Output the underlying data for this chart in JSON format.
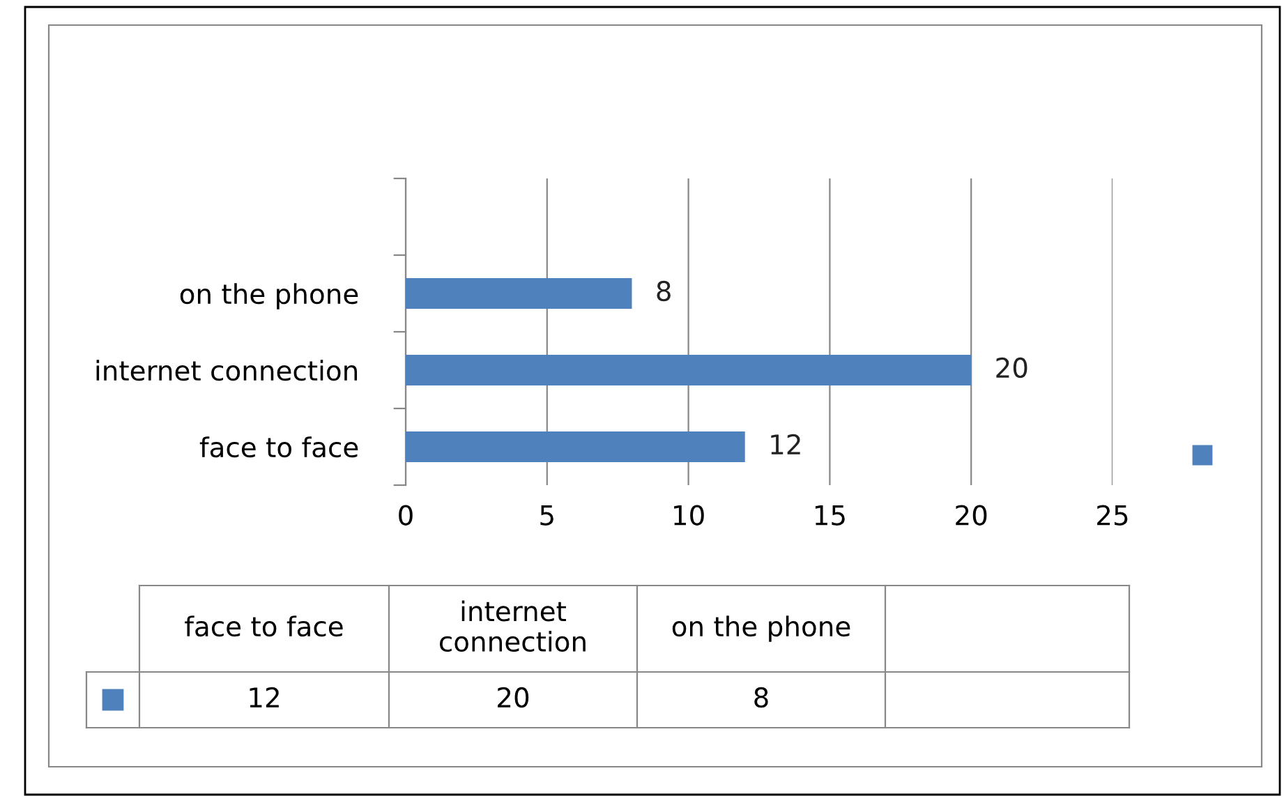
{
  "chart_data": {
    "type": "bar",
    "orientation": "horizontal",
    "categories": [
      null,
      "on the phone",
      "internet connection",
      "face to face"
    ],
    "series": [
      {
        "color": "#4f81bd",
        "values": [
          null,
          8,
          20,
          12
        ],
        "value_labels": [
          null,
          "8",
          "20",
          "12"
        ]
      }
    ],
    "xlim": [
      0,
      25
    ],
    "xticks": [
      0,
      5,
      10,
      15,
      20,
      25
    ],
    "grid": "x"
  }
}
